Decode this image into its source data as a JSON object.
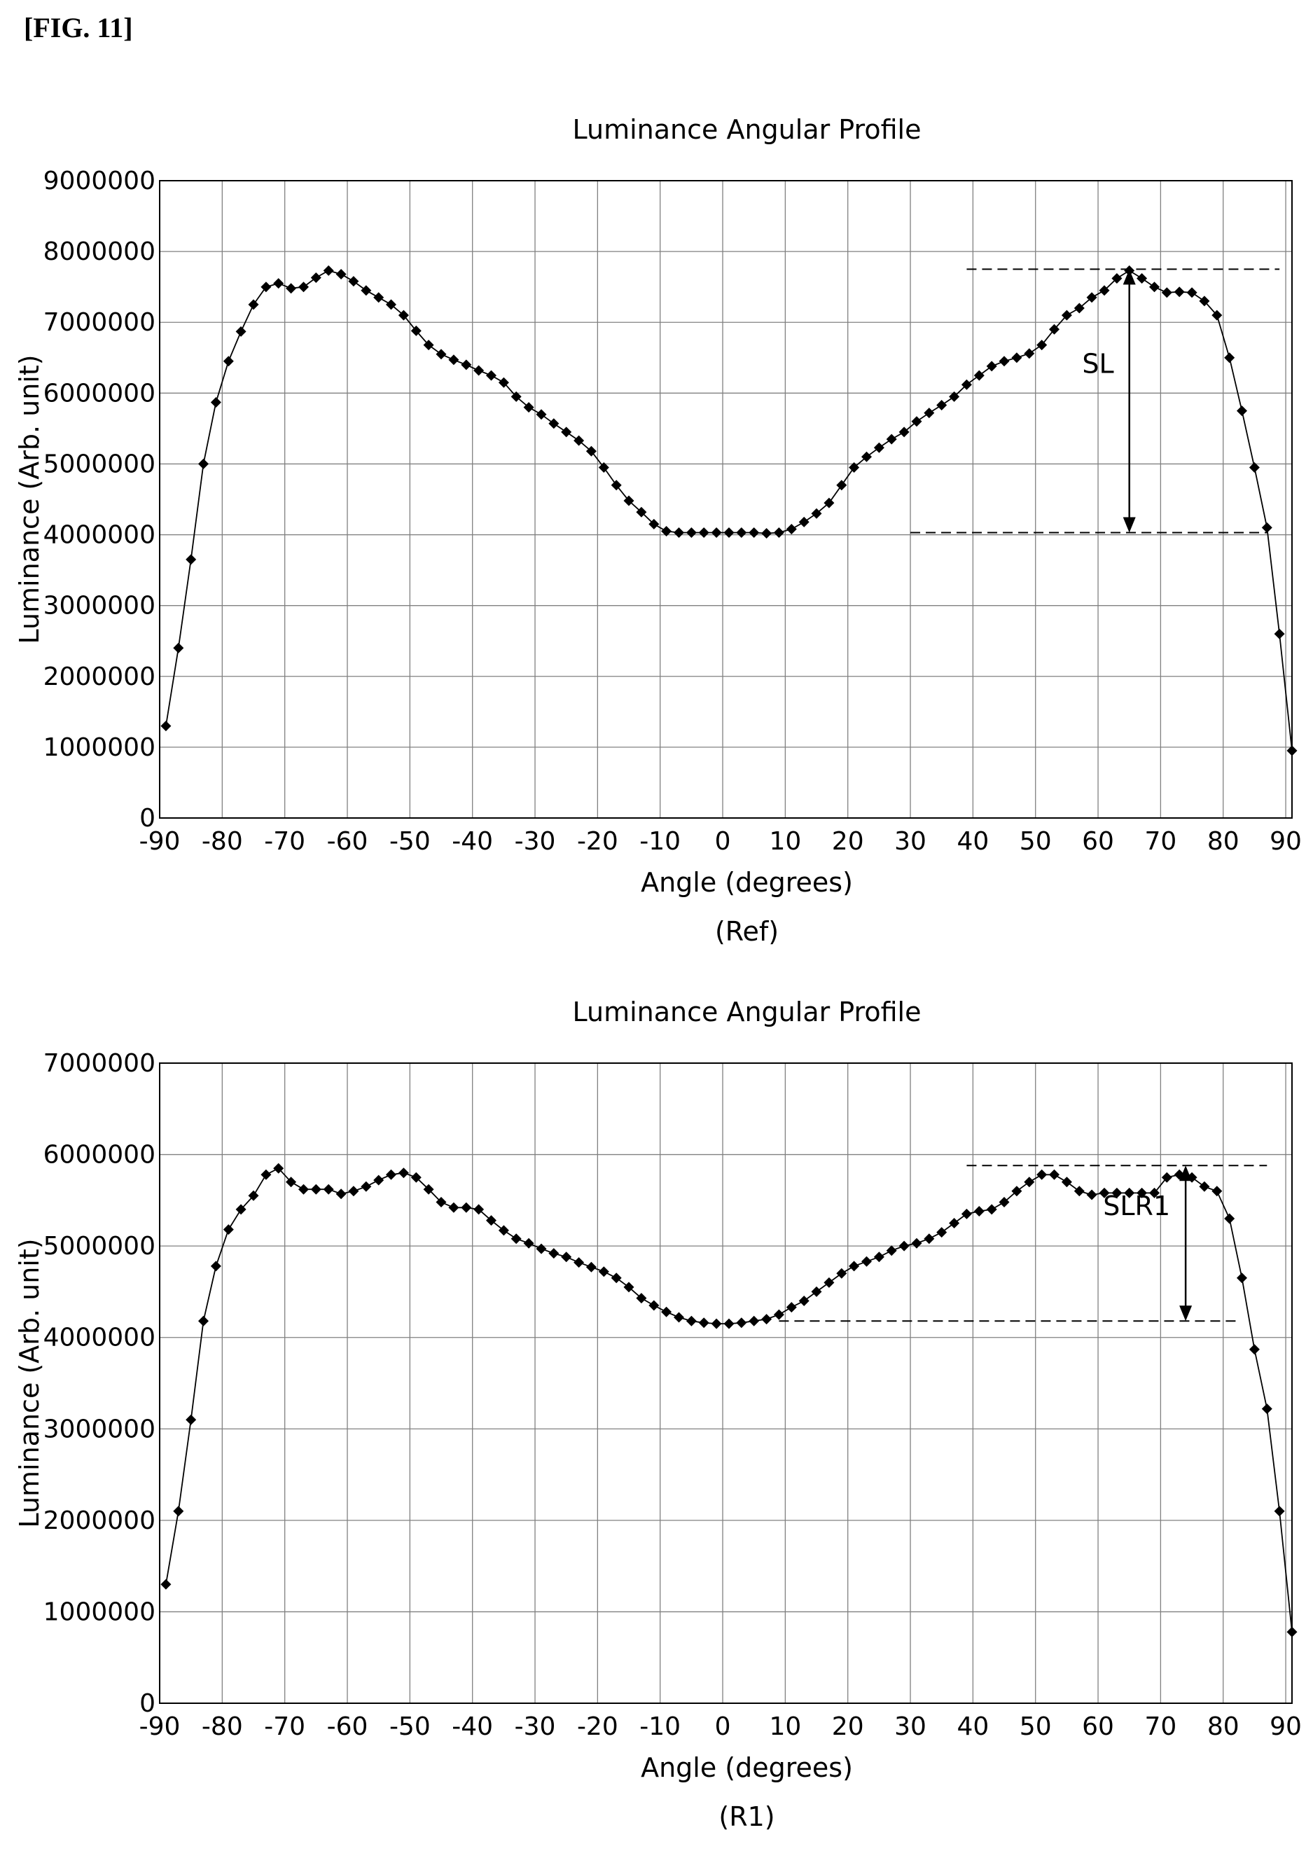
{
  "figure_label": "[FIG. 11]",
  "chart_data": [
    {
      "type": "line",
      "title": "Luminance Angular Profile",
      "xlabel": "Angle (degrees)",
      "ylabel": "Luminance (Arb. unit)",
      "caption": "(Ref)",
      "xlim": [
        -90,
        91
      ],
      "ylim": [
        0,
        9000000
      ],
      "x_ticks": [
        -90,
        -80,
        -70,
        -60,
        -50,
        -40,
        -30,
        -20,
        -10,
        0,
        10,
        20,
        30,
        40,
        50,
        60,
        70,
        80,
        90
      ],
      "y_ticks": [
        0,
        1000000,
        2000000,
        3000000,
        4000000,
        5000000,
        6000000,
        7000000,
        8000000,
        9000000
      ],
      "grid": true,
      "annotation": {
        "label": "SL",
        "arrow_x": 65,
        "top_value": 7750000,
        "bottom_value": 4030000,
        "top_line_x": [
          39,
          89
        ],
        "bottom_line_x": [
          30,
          87
        ]
      },
      "series": [
        {
          "x": [
            -89,
            -87,
            -85,
            -83,
            -81,
            -79,
            -77,
            -75,
            -73,
            -71,
            -69,
            -67,
            -65,
            -63,
            -61,
            -59,
            -57,
            -55,
            -53,
            -51,
            -49,
            -47,
            -45,
            -43,
            -41,
            -39,
            -37,
            -35,
            -33,
            -31,
            -29,
            -27,
            -25,
            -23,
            -21,
            -19,
            -17,
            -15,
            -13,
            -11,
            -9,
            -7,
            -5,
            -3,
            -1,
            1,
            3,
            5,
            7,
            9,
            11,
            13,
            15,
            17,
            19,
            21,
            23,
            25,
            27,
            29,
            31,
            33,
            35,
            37,
            39,
            41,
            43,
            45,
            47,
            49,
            51,
            53,
            55,
            57,
            59,
            61,
            63,
            65,
            67,
            69,
            71,
            73,
            75,
            77,
            79,
            81,
            83,
            85,
            87,
            89,
            91
          ],
          "values": [
            1300000,
            2400000,
            3650000,
            5000000,
            5870000,
            6450000,
            6870000,
            7250000,
            7500000,
            7550000,
            7480000,
            7500000,
            7630000,
            7730000,
            7680000,
            7580000,
            7450000,
            7350000,
            7250000,
            7100000,
            6880000,
            6680000,
            6550000,
            6470000,
            6400000,
            6320000,
            6250000,
            6150000,
            5950000,
            5800000,
            5700000,
            5570000,
            5450000,
            5330000,
            5180000,
            4950000,
            4700000,
            4480000,
            4320000,
            4150000,
            4050000,
            4030000,
            4030000,
            4030000,
            4030000,
            4030000,
            4030000,
            4030000,
            4020000,
            4030000,
            4080000,
            4180000,
            4300000,
            4450000,
            4700000,
            4950000,
            5100000,
            5230000,
            5350000,
            5450000,
            5600000,
            5720000,
            5830000,
            5950000,
            6120000,
            6250000,
            6380000,
            6450000,
            6500000,
            6560000,
            6680000,
            6900000,
            7100000,
            7200000,
            7350000,
            7450000,
            7620000,
            7730000,
            7620000,
            7500000,
            7420000,
            7430000,
            7420000,
            7300000,
            7100000,
            6500000,
            5750000,
            4950000,
            4100000,
            2600000,
            950000
          ]
        }
      ]
    },
    {
      "type": "line",
      "title": "Luminance Angular Profile",
      "xlabel": "Angle (degrees)",
      "ylabel": "Luminance (Arb. unit)",
      "caption": "(R1)",
      "xlim": [
        -90,
        91
      ],
      "ylim": [
        0,
        7000000
      ],
      "x_ticks": [
        -90,
        -80,
        -70,
        -60,
        -50,
        -40,
        -30,
        -20,
        -10,
        0,
        10,
        20,
        30,
        40,
        50,
        60,
        70,
        80,
        90
      ],
      "y_ticks": [
        0,
        1000000,
        2000000,
        3000000,
        4000000,
        5000000,
        6000000,
        7000000
      ],
      "grid": true,
      "annotation": {
        "label": "SLR1",
        "arrow_x": 74,
        "top_value": 5880000,
        "bottom_value": 4180000,
        "top_line_x": [
          39,
          87
        ],
        "bottom_line_x": [
          9,
          82
        ]
      },
      "series": [
        {
          "x": [
            -89,
            -87,
            -85,
            -83,
            -81,
            -79,
            -77,
            -75,
            -73,
            -71,
            -69,
            -67,
            -65,
            -63,
            -61,
            -59,
            -57,
            -55,
            -53,
            -51,
            -49,
            -47,
            -45,
            -43,
            -41,
            -39,
            -37,
            -35,
            -33,
            -31,
            -29,
            -27,
            -25,
            -23,
            -21,
            -19,
            -17,
            -15,
            -13,
            -11,
            -9,
            -7,
            -5,
            -3,
            -1,
            1,
            3,
            5,
            7,
            9,
            11,
            13,
            15,
            17,
            19,
            21,
            23,
            25,
            27,
            29,
            31,
            33,
            35,
            37,
            39,
            41,
            43,
            45,
            47,
            49,
            51,
            53,
            55,
            57,
            59,
            61,
            63,
            65,
            67,
            69,
            71,
            73,
            75,
            77,
            79,
            81,
            83,
            85,
            87,
            89,
            91
          ],
          "values": [
            1300000,
            2100000,
            3100000,
            4180000,
            4780000,
            5180000,
            5400000,
            5550000,
            5780000,
            5850000,
            5700000,
            5620000,
            5620000,
            5620000,
            5570000,
            5600000,
            5650000,
            5720000,
            5780000,
            5800000,
            5750000,
            5620000,
            5480000,
            5420000,
            5420000,
            5400000,
            5280000,
            5170000,
            5080000,
            5030000,
            4970000,
            4920000,
            4880000,
            4820000,
            4770000,
            4720000,
            4650000,
            4550000,
            4430000,
            4350000,
            4280000,
            4220000,
            4180000,
            4160000,
            4150000,
            4150000,
            4160000,
            4180000,
            4200000,
            4250000,
            4330000,
            4400000,
            4500000,
            4600000,
            4700000,
            4780000,
            4830000,
            4880000,
            4950000,
            5000000,
            5030000,
            5080000,
            5150000,
            5250000,
            5350000,
            5380000,
            5400000,
            5480000,
            5600000,
            5700000,
            5780000,
            5780000,
            5700000,
            5600000,
            5560000,
            5580000,
            5580000,
            5580000,
            5580000,
            5580000,
            5750000,
            5780000,
            5750000,
            5650000,
            5600000,
            5300000,
            4650000,
            3870000,
            3220000,
            2100000,
            780000
          ]
        }
      ]
    }
  ]
}
